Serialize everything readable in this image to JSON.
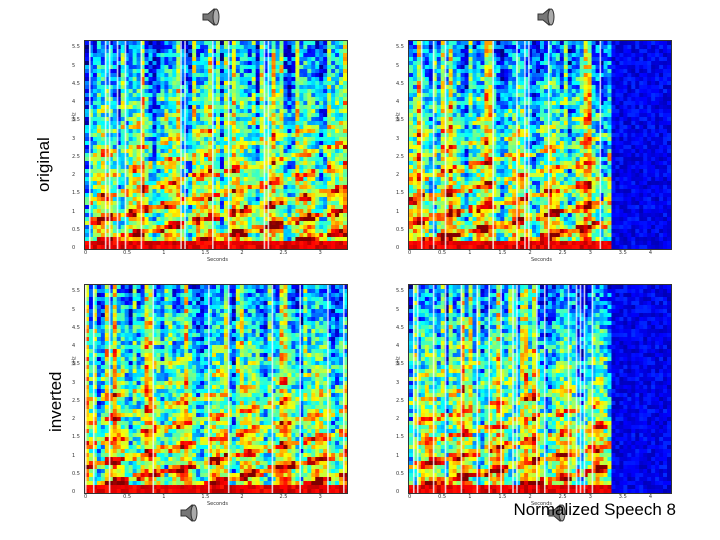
{
  "labels": {
    "row_original": "original",
    "row_inverted": "inverted",
    "footer": "Normalized Speech 8"
  },
  "icons": [
    "speaker-icon",
    "speaker-icon",
    "speaker-icon",
    "speaker-icon"
  ],
  "colors": {
    "background": "#ffffff",
    "colormap_low": "#0a2a8c",
    "colormap_high": "#d42a12"
  },
  "axes": {
    "left": {
      "y_ticks": [
        "0",
        "0.5",
        "1",
        "1.5",
        "2",
        "2.5",
        "3",
        "3.5",
        "4",
        "4.5",
        "5",
        "5.5"
      ],
      "x_ticks": [
        "0",
        "0.5",
        "1",
        "1.5",
        "2",
        "2.5",
        "3"
      ],
      "ylabel": "kHz",
      "xlabel": "Seconds"
    },
    "right": {
      "y_ticks": [
        "0",
        "0.5",
        "1",
        "1.5",
        "2",
        "2.5",
        "3",
        "3.5",
        "4",
        "4.5",
        "5",
        "5.5"
      ],
      "x_ticks": [
        "0",
        "0.5",
        "1",
        "1.5",
        "2",
        "2.5",
        "3",
        "3.5",
        "4"
      ],
      "ylabel": "kHz",
      "xlabel": "Seconds"
    }
  }
}
